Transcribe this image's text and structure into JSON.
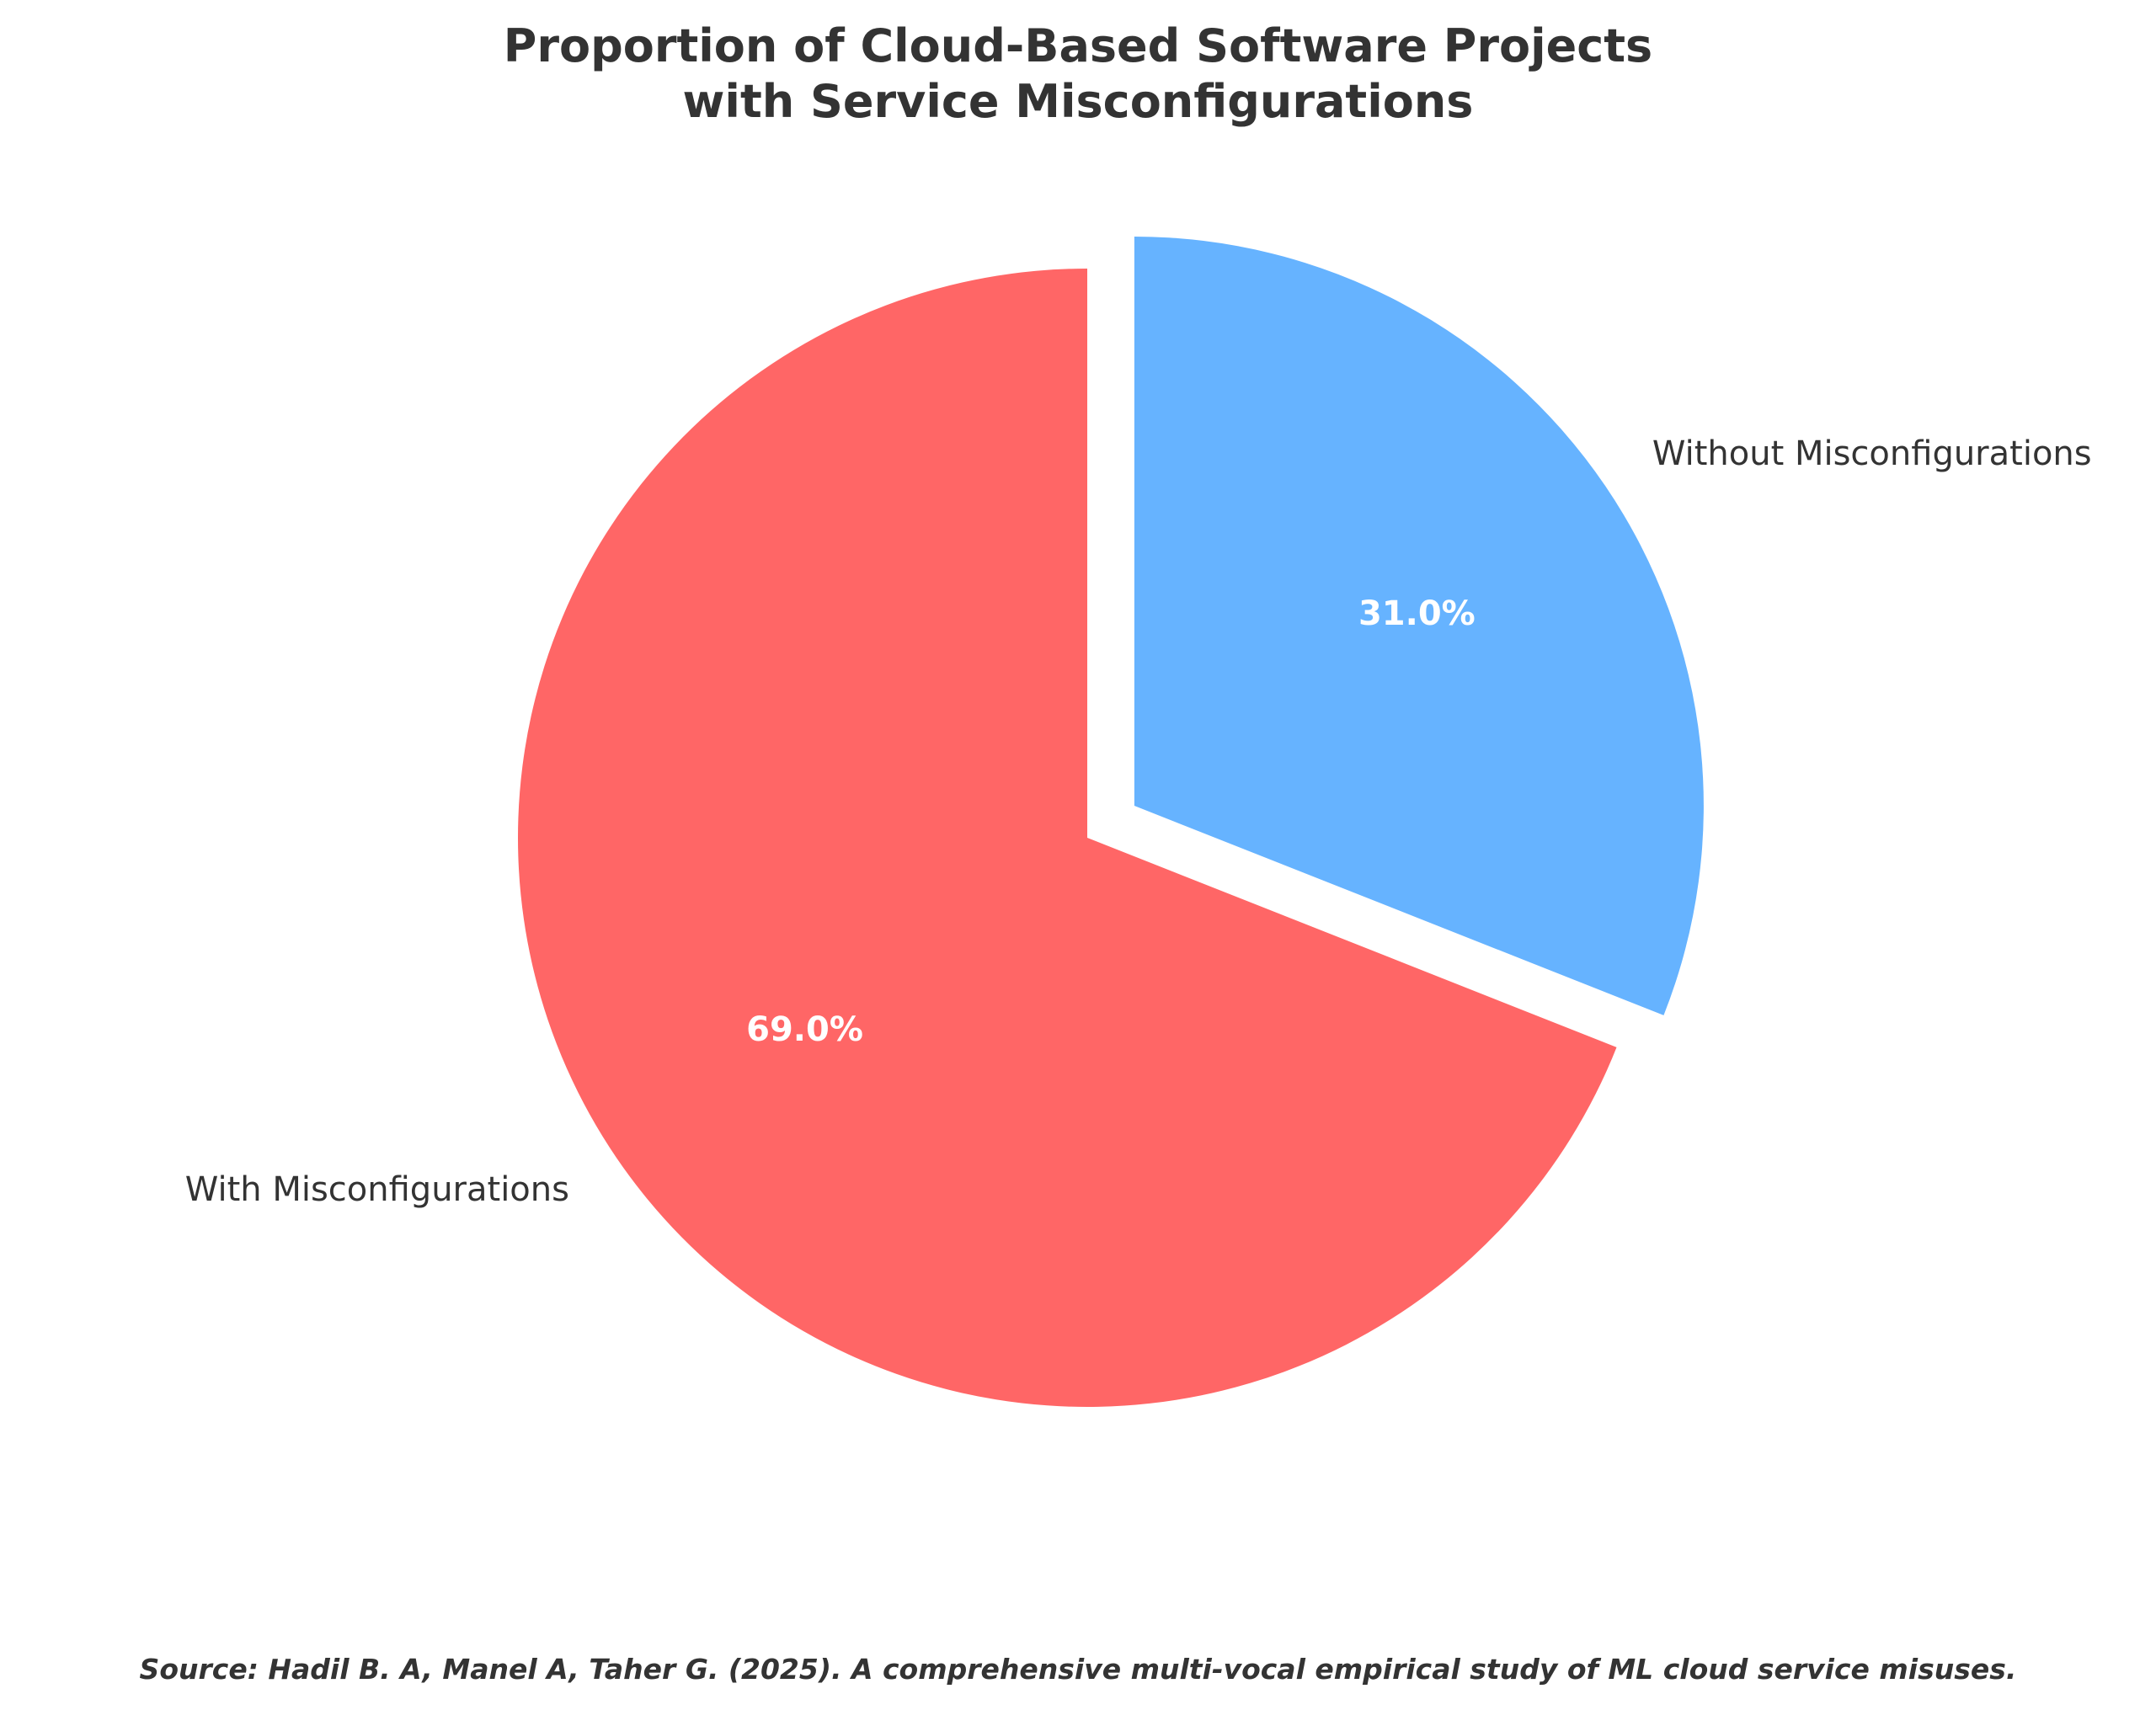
{
  "chart_data": {
    "type": "pie",
    "title": "Proportion of Cloud-Based Software Projects with Service Misconfigurations",
    "title_lines": [
      "Proportion of Cloud-Based Software Projects",
      "with Service Misconfigurations"
    ],
    "slices": [
      {
        "label": "Without Misconfigurations",
        "value": 31.0,
        "pct_label": "31.0%",
        "color": "#66b3ff",
        "exploded": true
      },
      {
        "label": "With Misconfigurations",
        "value": 69.0,
        "pct_label": "69.0%",
        "color": "#ff6666",
        "exploded": false
      }
    ],
    "start_angle_deg": 90,
    "direction": "clockwise",
    "slice_edge_color": "#ffffff",
    "label_color": "#333333",
    "pct_label_color": "#ffffff"
  },
  "source_note": "Source: Hadil B. A, Manel A, Taher G. (2025). A comprehensive multi-vocal empirical study of ML cloud service misuses."
}
